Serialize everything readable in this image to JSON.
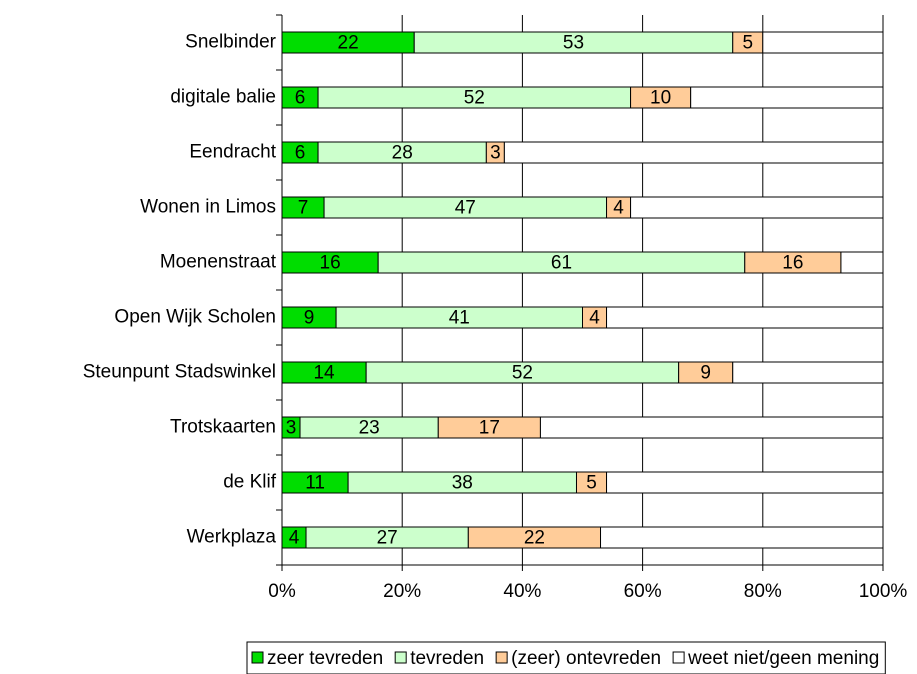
{
  "chart_data": {
    "type": "stacked-bar",
    "orientation": "horizontal",
    "categories": [
      "Snelbinder",
      "digitale balie",
      "Eendracht",
      "Wonen in Limos",
      "Moenenstraat",
      "Open Wijk Scholen",
      "Steunpunt Stadswinkel",
      "Trotskaarten",
      "de Klif",
      "Werkplaza"
    ],
    "series": [
      {
        "name": "zeer tevreden",
        "color": "#00dd00",
        "values": [
          22,
          6,
          6,
          7,
          16,
          9,
          14,
          3,
          11,
          4
        ],
        "labeled": true
      },
      {
        "name": "tevreden",
        "color": "#ccffcc",
        "values": [
          53,
          52,
          28,
          47,
          61,
          41,
          52,
          23,
          38,
          27
        ],
        "labeled": true
      },
      {
        "name": "(zeer) ontevreden",
        "color": "#ffcc99",
        "values": [
          5,
          10,
          3,
          4,
          16,
          4,
          9,
          17,
          5,
          22
        ],
        "labeled": true
      },
      {
        "name": "weet niet/geen mening",
        "color": "#ffffff",
        "values": [
          20,
          32,
          63,
          42,
          7,
          46,
          25,
          57,
          46,
          47
        ],
        "labeled": false
      }
    ],
    "xlim": [
      0,
      100
    ],
    "xticks": [
      {
        "value": 0,
        "label": "0%"
      },
      {
        "value": 20,
        "label": "20%"
      },
      {
        "value": 40,
        "label": "40%"
      },
      {
        "value": 60,
        "label": "60%"
      },
      {
        "value": 80,
        "label": "80%"
      },
      {
        "value": 100,
        "label": "100%"
      }
    ],
    "grid": true,
    "legend": "bottom"
  }
}
